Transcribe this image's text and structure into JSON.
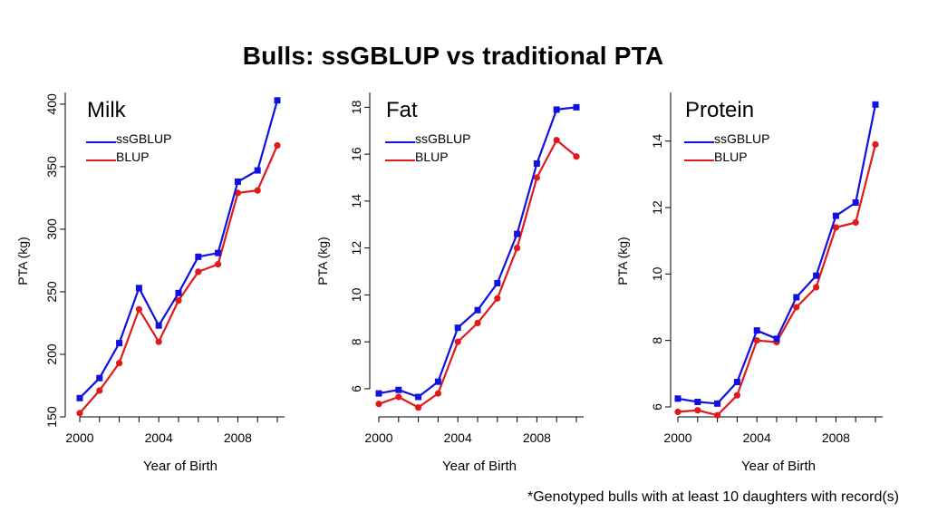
{
  "title": "Bulls: ssGBLUP vs traditional PTA",
  "footnote": "*Genotyped bulls with at least 10 daughters with record(s)",
  "colors": {
    "ssGBLUP": "#1010e0",
    "BLUP": "#e01a1a"
  },
  "chart_data": [
    {
      "type": "line",
      "title": "Milk",
      "xlabel": "Year of Birth",
      "ylabel": "PTA (kg)",
      "xlim": [
        2000,
        2010
      ],
      "ylim": [
        150,
        405
      ],
      "x_ticks": [
        2000,
        2004,
        2008
      ],
      "y_ticks": [
        150,
        200,
        250,
        300,
        350,
        400
      ],
      "legend": [
        "ssGBLUP",
        "BLUP"
      ],
      "x": [
        2000,
        2001,
        2002,
        2003,
        2004,
        2005,
        2006,
        2007,
        2008,
        2009,
        2010
      ],
      "series": [
        {
          "name": "ssGBLUP",
          "marker": "square",
          "values": [
            165,
            181,
            209,
            253,
            223,
            249,
            278,
            281,
            338,
            347,
            403
          ]
        },
        {
          "name": "BLUP",
          "marker": "circle",
          "values": [
            153,
            171,
            193,
            236,
            210,
            243,
            266,
            272,
            329,
            331,
            367
          ]
        }
      ]
    },
    {
      "type": "line",
      "title": "Fat",
      "xlabel": "Year of Birth",
      "ylabel": "PTA (kg)",
      "xlim": [
        2000,
        2010
      ],
      "ylim": [
        4.8,
        18.4
      ],
      "x_ticks": [
        2000,
        2004,
        2008
      ],
      "y_ticks": [
        6,
        8,
        10,
        12,
        14,
        16,
        18
      ],
      "legend": [
        "ssGBLUP",
        "BLUP"
      ],
      "x": [
        2000,
        2001,
        2002,
        2003,
        2004,
        2005,
        2006,
        2007,
        2008,
        2009,
        2010
      ],
      "series": [
        {
          "name": "ssGBLUP",
          "marker": "square",
          "values": [
            5.8,
            5.95,
            5.65,
            6.3,
            8.6,
            9.35,
            10.5,
            12.6,
            15.6,
            17.9,
            18.0
          ]
        },
        {
          "name": "BLUP",
          "marker": "circle",
          "values": [
            5.35,
            5.65,
            5.2,
            5.8,
            8.0,
            8.8,
            9.85,
            12.0,
            15.0,
            16.6,
            15.9
          ]
        }
      ]
    },
    {
      "type": "line",
      "title": "Protein",
      "xlabel": "Year of Birth",
      "ylabel": "PTA (kg)",
      "xlim": [
        2000,
        2010
      ],
      "ylim": [
        5.7,
        15.3
      ],
      "x_ticks": [
        2000,
        2004,
        2008
      ],
      "y_ticks": [
        6,
        8,
        10,
        12,
        14
      ],
      "legend": [
        "ssGBLUP",
        "BLUP"
      ],
      "x": [
        2000,
        2001,
        2002,
        2003,
        2004,
        2005,
        2006,
        2007,
        2008,
        2009,
        2010
      ],
      "series": [
        {
          "name": "ssGBLUP",
          "marker": "square",
          "values": [
            6.25,
            6.15,
            6.1,
            6.75,
            8.3,
            8.05,
            9.3,
            9.95,
            11.75,
            12.15,
            15.1
          ]
        },
        {
          "name": "BLUP",
          "marker": "circle",
          "values": [
            5.85,
            5.9,
            5.75,
            6.35,
            8.0,
            7.95,
            9.0,
            9.6,
            11.4,
            11.55,
            13.9
          ]
        }
      ]
    }
  ]
}
